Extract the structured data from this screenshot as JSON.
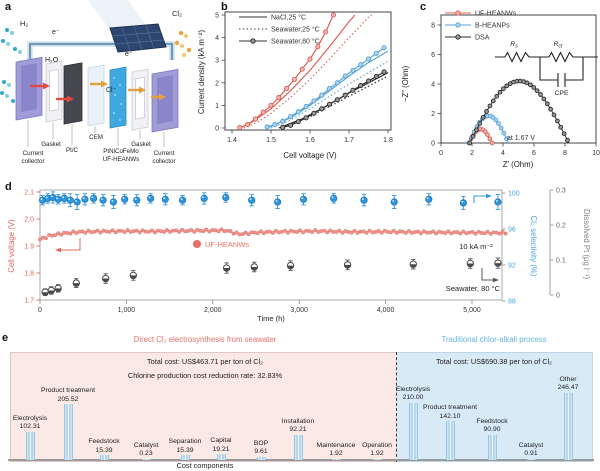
{
  "panel_letters": {
    "a": "a",
    "b": "b",
    "c": "c",
    "d": "d",
    "e": "e"
  },
  "panel_a": {
    "h2": "H₂",
    "cl2": "Cl₂",
    "electron": "e⁻",
    "water": "H₂O",
    "chloride": "Cl⁻",
    "labels": {
      "cc_left_1": "Current",
      "cc_left_2": "collector",
      "gasket_left": "Gasket",
      "ptc": "Pt/C",
      "cem": "CEM",
      "catalyst_1": "PtNiCoFeMo",
      "catalyst_2": "UF-HEANWs",
      "gasket_right": "Gasket",
      "cc_right_1": "Current",
      "cc_right_2": "collector"
    }
  },
  "chart_data": [
    {
      "panel": "b",
      "type": "line",
      "xlabel": "Cell voltage (V)",
      "ylabel": "Current density (kA m⁻²)",
      "xlim": [
        1.4,
        1.8
      ],
      "ylim": [
        0,
        5
      ],
      "xticks": [
        1.4,
        1.5,
        1.6,
        1.7,
        1.8
      ],
      "yticks": [
        0,
        1,
        2,
        3,
        4,
        5
      ],
      "legend": [
        {
          "label": "NaCl,25 °C",
          "style": "solid"
        },
        {
          "label": "Seawater,25 °C",
          "style": "dotted"
        },
        {
          "label": "Seawater,80 °C",
          "style": "marker"
        }
      ],
      "series": [
        {
          "name": "UF-HEANWs NaCl 25C",
          "color": "#d95f56",
          "style": "solid",
          "points": [
            [
              1.42,
              0
            ],
            [
              1.45,
              0.25
            ],
            [
              1.5,
              0.85
            ],
            [
              1.55,
              1.65
            ],
            [
              1.6,
              2.55
            ],
            [
              1.65,
              3.6
            ],
            [
              1.7,
              4.7
            ],
            [
              1.715,
              5.0
            ]
          ]
        },
        {
          "name": "UF-HEANWs Seawater 25C",
          "color": "#d95f56",
          "style": "dotted",
          "points": [
            [
              1.43,
              0
            ],
            [
              1.47,
              0.3
            ],
            [
              1.5,
              0.65
            ],
            [
              1.55,
              1.35
            ],
            [
              1.6,
              2.15
            ],
            [
              1.65,
              3.05
            ],
            [
              1.7,
              4.0
            ],
            [
              1.75,
              4.9
            ],
            [
              1.758,
              5.0
            ]
          ]
        },
        {
          "name": "UF-HEANWs Seawater 80C",
          "color": "#d95f56",
          "style": "marker",
          "mfill": "#f3b6af",
          "points": [
            [
              1.42,
              0.02
            ],
            [
              1.44,
              0.15
            ],
            [
              1.46,
              0.4
            ],
            [
              1.48,
              0.7
            ],
            [
              1.5,
              1.0
            ],
            [
              1.52,
              1.35
            ],
            [
              1.54,
              1.75
            ],
            [
              1.56,
              2.15
            ],
            [
              1.58,
              2.6
            ],
            [
              1.6,
              3.05
            ],
            [
              1.62,
              3.6
            ],
            [
              1.64,
              4.25
            ],
            [
              1.66,
              5.0
            ]
          ]
        },
        {
          "name": "B-HEANPs NaCl 25C",
          "color": "#56a3d8",
          "style": "solid",
          "points": [
            [
              1.49,
              0
            ],
            [
              1.55,
              0.45
            ],
            [
              1.6,
              1.0
            ],
            [
              1.65,
              1.65
            ],
            [
              1.7,
              2.3
            ],
            [
              1.75,
              2.9
            ],
            [
              1.8,
              3.4
            ]
          ]
        },
        {
          "name": "B-HEANPs Seawater 25C",
          "color": "#56a3d8",
          "style": "dotted",
          "points": [
            [
              1.5,
              0
            ],
            [
              1.55,
              0.35
            ],
            [
              1.6,
              0.85
            ],
            [
              1.65,
              1.4
            ],
            [
              1.7,
              1.95
            ],
            [
              1.75,
              2.45
            ],
            [
              1.8,
              2.95
            ]
          ]
        },
        {
          "name": "B-HEANPs Seawater 80C",
          "color": "#56a3d8",
          "style": "marker",
          "mfill": "#abd3ee",
          "points": [
            [
              1.49,
              0.05
            ],
            [
              1.51,
              0.15
            ],
            [
              1.53,
              0.3
            ],
            [
              1.55,
              0.5
            ],
            [
              1.57,
              0.72
            ],
            [
              1.59,
              0.95
            ],
            [
              1.61,
              1.2
            ],
            [
              1.63,
              1.45
            ],
            [
              1.65,
              1.75
            ],
            [
              1.67,
              2.0
            ],
            [
              1.69,
              2.3
            ],
            [
              1.71,
              2.55
            ],
            [
              1.73,
              2.8
            ],
            [
              1.75,
              3.05
            ],
            [
              1.77,
              3.3
            ],
            [
              1.79,
              3.55
            ]
          ]
        },
        {
          "name": "DSA NaCl 25C",
          "color": "#2b2b2b",
          "style": "solid",
          "points": [
            [
              1.52,
              0
            ],
            [
              1.58,
              0.4
            ],
            [
              1.64,
              0.95
            ],
            [
              1.7,
              1.55
            ],
            [
              1.75,
              2.0
            ],
            [
              1.8,
              2.45
            ]
          ]
        },
        {
          "name": "DSA Seawater 25C",
          "color": "#2b2b2b",
          "style": "dotted",
          "points": [
            [
              1.53,
              0
            ],
            [
              1.6,
              0.5
            ],
            [
              1.65,
              0.95
            ],
            [
              1.7,
              1.4
            ],
            [
              1.75,
              1.85
            ],
            [
              1.8,
              2.3
            ]
          ]
        },
        {
          "name": "DSA Seawater 80C",
          "color": "#2b2b2b",
          "style": "marker",
          "mfill": "#9a9a9a",
          "points": [
            [
              1.53,
              0.03
            ],
            [
              1.55,
              0.12
            ],
            [
              1.57,
              0.28
            ],
            [
              1.59,
              0.45
            ],
            [
              1.61,
              0.65
            ],
            [
              1.63,
              0.85
            ],
            [
              1.65,
              1.05
            ],
            [
              1.67,
              1.25
            ],
            [
              1.69,
              1.45
            ],
            [
              1.71,
              1.67
            ],
            [
              1.73,
              1.88
            ],
            [
              1.75,
              2.08
            ],
            [
              1.77,
              2.28
            ],
            [
              1.79,
              2.48
            ]
          ]
        }
      ]
    },
    {
      "panel": "c",
      "type": "nyquist",
      "xlabel": "Z′ (Ohm)",
      "ylabel": "−Z″ (Ohm)",
      "xlim": [
        0,
        10
      ],
      "ylim": [
        0,
        8
      ],
      "xticks": [
        0,
        2,
        4,
        6,
        8,
        10
      ],
      "yticks": [
        0,
        2,
        4,
        6,
        8
      ],
      "annotation": "at 1.67 V",
      "legend": [
        {
          "label": "UF-HEANWs",
          "color": "#d95f56",
          "mfill": "#f3b6af"
        },
        {
          "label": "B-HEANPs",
          "color": "#56a3d8",
          "mfill": "#abd3ee"
        },
        {
          "label": "DSA",
          "color": "#2b2b2b",
          "mfill": "#9a9a9a"
        }
      ],
      "semicircles": [
        {
          "name": "UF-HEANWs",
          "color": "#d95f56",
          "mfill": "#f3b6af",
          "x_start": 1.8,
          "x_end": 3.3,
          "peak": 0.95,
          "mstep": 0.1
        },
        {
          "name": "B-HEANPs",
          "color": "#56a3d8",
          "mfill": "#abd3ee",
          "x_start": 1.8,
          "x_end": 4.35,
          "peak": 1.85,
          "mstep": 0.068
        },
        {
          "name": "DSA",
          "color": "#2b2b2b",
          "mfill": "#9a9a9a",
          "x_start": 1.85,
          "x_end": 8.25,
          "peak": 4.2,
          "mstep": 0.034
        }
      ],
      "circuit": {
        "r1_main": "R",
        "r1_sub": "s",
        "r2_main": "R",
        "r2_sub": "ct",
        "cpe": "CPE"
      }
    },
    {
      "panel": "d",
      "type": "scatter-time",
      "xlabel": "Time (h)",
      "xticks": [
        0,
        1000,
        2000,
        3000,
        4000,
        5000
      ],
      "xticklabels": [
        "0",
        "1,000",
        "2,000",
        "3,000",
        "4,000",
        "5,000"
      ],
      "axes": {
        "left": {
          "label": "Cell voltage (V)",
          "range": [
            1.7,
            2.1
          ],
          "ticks": [
            "1.7",
            "1.8",
            "1.9",
            "2.0",
            "2.1"
          ],
          "color": "#e0655e"
        },
        "right1": {
          "label": "Cl₂ selectivity (%)",
          "range": [
            88,
            100
          ],
          "ticks": [
            "88",
            "92",
            "96",
            "100"
          ],
          "color": "#4aa3dc"
        },
        "right2": {
          "label": "Dissolved Pt (μg l⁻¹)",
          "range": [
            0,
            0.3
          ],
          "ticks": [
            "0",
            "0.1",
            "0.2",
            "0.3"
          ],
          "color": "#777777"
        }
      },
      "annotations": {
        "catalyst": "UF-HEANWs",
        "current_density": "10 kA m⁻²",
        "condition": "Seawater, 80 °C"
      },
      "series": {
        "cell_voltage": {
          "name": "Cell voltage",
          "color": "#de6a61",
          "control_points": [
            [
              0,
              1.924
            ],
            [
              100,
              1.937
            ],
            [
              250,
              1.946
            ],
            [
              450,
              1.952
            ],
            [
              700,
              1.954
            ],
            [
              1000,
              1.955
            ],
            [
              1300,
              1.954
            ],
            [
              1600,
              1.956
            ],
            [
              1900,
              1.957
            ],
            [
              2150,
              1.958
            ],
            [
              2300,
              1.944
            ],
            [
              2500,
              1.95
            ],
            [
              2800,
              1.953
            ],
            [
              3200,
              1.955
            ],
            [
              3600,
              1.952
            ],
            [
              4000,
              1.953
            ],
            [
              4400,
              1.951
            ],
            [
              4800,
              1.95
            ],
            [
              5200,
              1.949
            ],
            [
              5400,
              1.949
            ]
          ]
        },
        "cl2_selectivity": {
          "name": "Cl2 selectivity",
          "color": "#2e96df",
          "points": [
            [
              30,
              99.2,
              0.3
            ],
            [
              90,
              99.4,
              0.3
            ],
            [
              150,
              99.5,
              0.4
            ],
            [
              210,
              99.3,
              0.3
            ],
            [
              280,
              99.4,
              0.3
            ],
            [
              350,
              99.2,
              0.5
            ],
            [
              430,
              99.0,
              0.6
            ],
            [
              520,
              99.3,
              0.4
            ],
            [
              620,
              99.4,
              0.3
            ],
            [
              730,
              99.2,
              0.4
            ],
            [
              850,
              99.0,
              0.5
            ],
            [
              980,
              99.3,
              0.3
            ],
            [
              1120,
              99.2,
              0.4
            ],
            [
              1280,
              99.4,
              0.3
            ],
            [
              1450,
              99.3,
              0.4
            ],
            [
              1650,
              99.2,
              0.3
            ],
            [
              1900,
              99.4,
              0.4
            ],
            [
              2150,
              99.5,
              0.3
            ],
            [
              2450,
              99.2,
              0.4
            ],
            [
              2750,
              99.0,
              0.5
            ],
            [
              3050,
              99.3,
              0.4
            ],
            [
              3400,
              99.4,
              0.3
            ],
            [
              3750,
              99.2,
              0.4
            ],
            [
              4100,
              99.0,
              0.5
            ],
            [
              4500,
              99.3,
              0.4
            ],
            [
              4900,
              98.9,
              0.5
            ],
            [
              5300,
              99.0,
              0.6
            ]
          ]
        },
        "dissolved_pt": {
          "name": "Dissolved Pt",
          "color": "#4a4a4a",
          "points": [
            [
              60,
              0.008,
              0.004
            ],
            [
              130,
              0.013,
              0.005
            ],
            [
              210,
              0.019,
              0.005
            ],
            [
              420,
              0.034,
              0.007
            ],
            [
              760,
              0.047,
              0.008
            ],
            [
              1080,
              0.056,
              0.008
            ],
            [
              2160,
              0.077,
              0.009
            ],
            [
              2480,
              0.08,
              0.008
            ],
            [
              2900,
              0.084,
              0.008
            ],
            [
              3560,
              0.086,
              0.008
            ],
            [
              4320,
              0.088,
              0.008
            ],
            [
              4980,
              0.09,
              0.008
            ],
            [
              5300,
              0.091,
              0.009
            ]
          ]
        }
      }
    },
    {
      "panel": "e",
      "type": "bar",
      "xlabel": "Cost components",
      "groups": [
        {
          "title": "Direct Cl₂ electrosynthesis from seawater",
          "total": "Total cost: US$463.71 per ton of Cl₂",
          "note": "Chlorine production cost reduction rate: 32.83%",
          "items": [
            {
              "label": "Electrolysis",
              "value": 102.31,
              "value_label": "102.31"
            },
            {
              "label": "Product treatment",
              "value": 205.52,
              "value_label": "205.52"
            },
            {
              "label": "Feedstock",
              "value": 15.39,
              "value_label": "15.39"
            },
            {
              "label": "Catalyst",
              "value": 0.23,
              "value_label": "0.23"
            },
            {
              "label": "Separation",
              "value": 15.39,
              "value_label": "15.39"
            },
            {
              "label": "Capital",
              "value": 19.21,
              "value_label": "19.21"
            },
            {
              "label": "BOP",
              "value": 9.61,
              "value_label": "9.61"
            },
            {
              "label": "Installation",
              "value": 92.21,
              "value_label": "92.21"
            },
            {
              "label": "Maintenance",
              "value": 1.92,
              "value_label": "1.92"
            },
            {
              "label": "Operation",
              "value": 1.92,
              "value_label": "1.92"
            }
          ]
        },
        {
          "title": "Traditional chlor-alkali process",
          "total": "Total cost: US$690.38 per ton of Cl₂",
          "items": [
            {
              "label": "Electrolysis",
              "value": 210.0,
              "value_label": "210.00"
            },
            {
              "label": "Product treatment",
              "value": 142.1,
              "value_label": "142.10"
            },
            {
              "label": "Feedstock",
              "value": 90.9,
              "value_label": "90.90"
            },
            {
              "label": "Catalyst",
              "value": 0.91,
              "value_label": "0.91"
            },
            {
              "label": "Other",
              "value": 246.47,
              "value_label": "246.47"
            }
          ]
        }
      ]
    }
  ]
}
